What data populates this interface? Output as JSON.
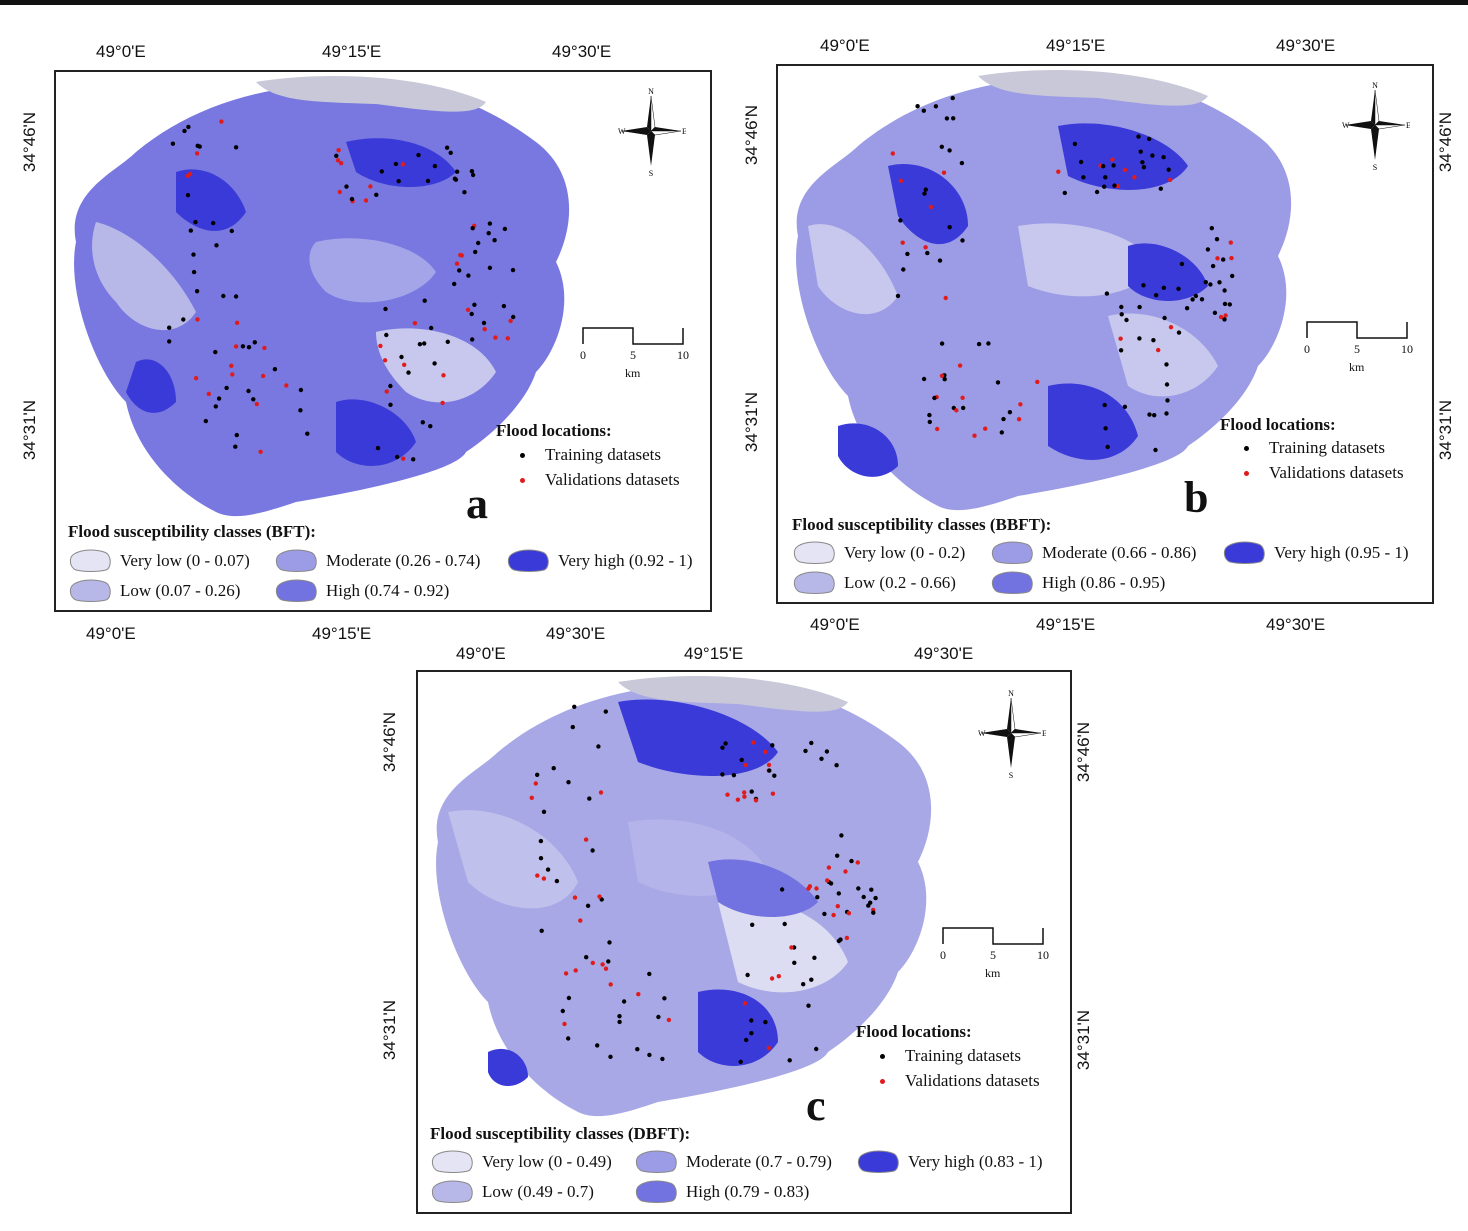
{
  "coords": {
    "lon_0": "49°0'E",
    "lon_15": "49°15'E",
    "lon_30": "49°30'E",
    "lat_46": "34°46'N",
    "lat_31": "34°31'N"
  },
  "scale": {
    "t0": "0",
    "t5": "5",
    "t10": "10",
    "unit": "km"
  },
  "compass": {
    "n": "N",
    "s": "S",
    "e": "E",
    "w": "W"
  },
  "flood_locations": {
    "title": "Flood locations:",
    "training": "Training datasets",
    "validation": "Validations datasets"
  },
  "colors": {
    "very_low": "#e4e4f4",
    "low": "#b8b8e8",
    "moderate": "#9c9ce6",
    "high": "#7272e0",
    "very_high": "#3a3ad8",
    "training_dot": "#000000",
    "validation_dot": "#e01b1b"
  },
  "panels": [
    {
      "letter": "a",
      "legend_title": "Flood susceptibility classes (BFT):",
      "classes": {
        "very_low": "Very low (0 - 0.07)",
        "low": "Low (0.07 - 0.26)",
        "moderate": "Moderate (0.26 - 0.74)",
        "high": "High (0.74 - 0.92)",
        "very_high": "Very high (0.92 - 1)"
      }
    },
    {
      "letter": "b",
      "legend_title": "Flood susceptibility classes (BBFT):",
      "classes": {
        "very_low": "Very low (0 - 0.2)",
        "low": "Low (0.2 - 0.66)",
        "moderate": "Moderate (0.66 - 0.86)",
        "high": "High (0.86 - 0.95)",
        "very_high": "Very high (0.95 - 1)"
      }
    },
    {
      "letter": "c",
      "legend_title": "Flood susceptibility classes (DBFT):",
      "classes": {
        "very_low": "Very low (0 - 0.49)",
        "low": "Low (0.49 - 0.7)",
        "moderate": "Moderate (0.7 - 0.79)",
        "high": "High (0.79 - 0.83)",
        "very_high": "Very high (0.83 - 1)"
      }
    }
  ]
}
